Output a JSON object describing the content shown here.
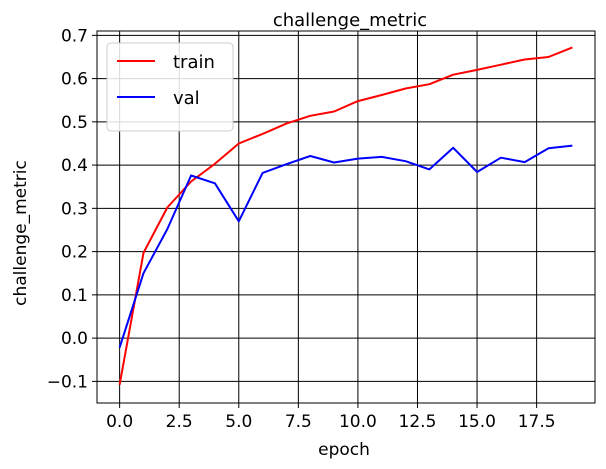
{
  "chart_data": {
    "type": "line",
    "title": "challenge_metric",
    "xlabel": "epoch",
    "ylabel": "challenge_metric",
    "xlim": [
      -0.95,
      19.95
    ],
    "ylim": [
      -0.15,
      0.71
    ],
    "xticks": [
      0,
      2.5,
      5,
      7.5,
      10,
      12.5,
      15,
      17.5
    ],
    "xtick_labels": [
      "0.0",
      "2.5",
      "5.0",
      "7.5",
      "10.0",
      "12.5",
      "15.0",
      "17.5"
    ],
    "yticks": [
      -0.1,
      0.0,
      0.1,
      0.2,
      0.3,
      0.4,
      0.5,
      0.6,
      0.7
    ],
    "ytick_labels": [
      "−0.1",
      "0.0",
      "0.1",
      "0.2",
      "0.3",
      "0.4",
      "0.5",
      "0.6",
      "0.7"
    ],
    "grid": true,
    "legend_position": "top-left",
    "x": [
      0,
      1,
      2,
      3,
      4,
      5,
      6,
      7,
      8,
      9,
      10,
      11,
      12,
      13,
      14,
      15,
      16,
      17,
      18,
      19
    ],
    "series": [
      {
        "name": "train",
        "color": "#ff0000",
        "values": [
          -0.108,
          0.197,
          0.302,
          0.362,
          0.403,
          0.45,
          0.472,
          0.496,
          0.514,
          0.524,
          0.548,
          0.562,
          0.577,
          0.587,
          0.609,
          0.62,
          0.632,
          0.644,
          0.65,
          0.672
        ]
      },
      {
        "name": "val",
        "color": "#0000ff",
        "values": [
          -0.022,
          0.15,
          0.252,
          0.376,
          0.358,
          0.27,
          0.382,
          0.402,
          0.421,
          0.406,
          0.415,
          0.419,
          0.409,
          0.39,
          0.44,
          0.384,
          0.417,
          0.407,
          0.439,
          0.445
        ]
      }
    ]
  }
}
